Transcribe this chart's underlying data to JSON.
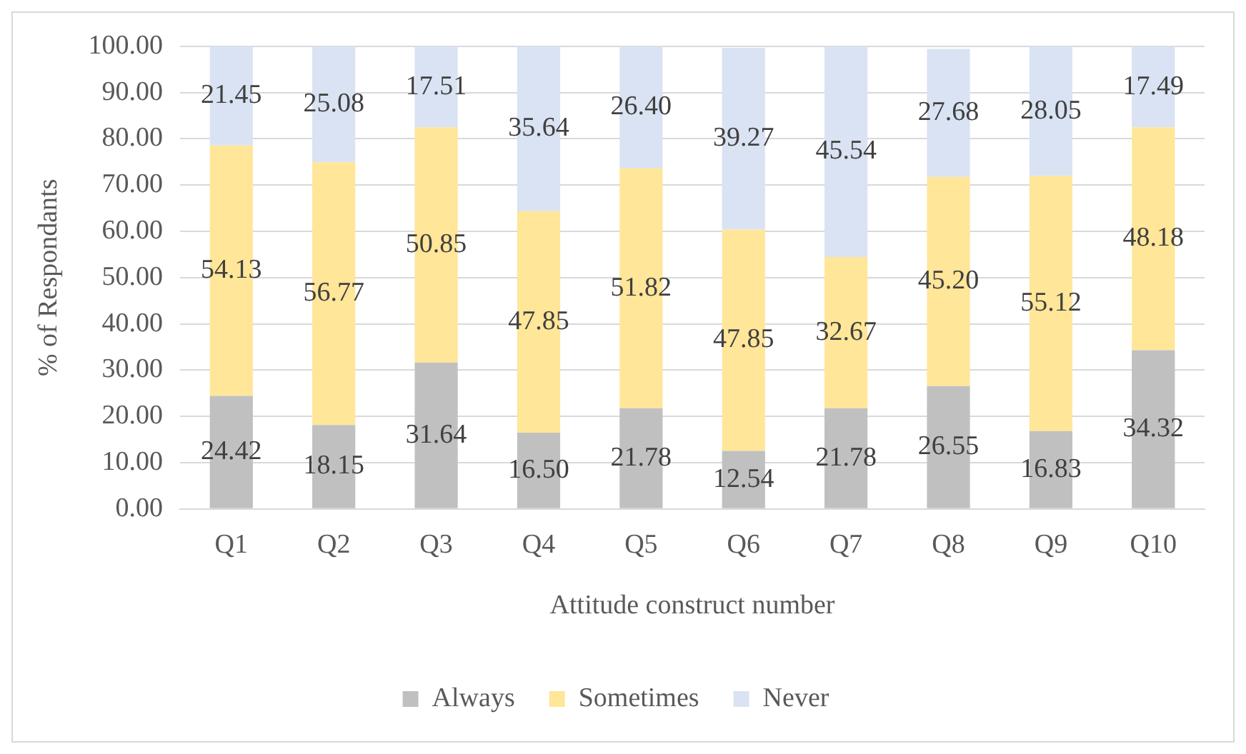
{
  "chart_data": {
    "type": "bar",
    "stacked": true,
    "xlabel": "Attitude construct number",
    "ylabel": "% of Respondants",
    "categories": [
      "Q1",
      "Q2",
      "Q3",
      "Q4",
      "Q5",
      "Q6",
      "Q7",
      "Q8",
      "Q9",
      "Q10"
    ],
    "series": [
      {
        "name": "Always",
        "color": "#c0c0c0",
        "values": [
          24.42,
          18.15,
          31.64,
          16.5,
          21.78,
          12.54,
          21.78,
          26.55,
          16.83,
          34.32
        ],
        "value_labels": [
          "24.42",
          "18.15",
          "31.64",
          "16.50",
          "21.78",
          "12.54",
          "21.78",
          "26.55",
          "16.83",
          "34.32"
        ]
      },
      {
        "name": "Sometimes",
        "color": "#ffe699",
        "values": [
          54.13,
          56.77,
          50.85,
          47.85,
          51.82,
          47.85,
          32.67,
          45.2,
          55.12,
          48.18
        ],
        "value_labels": [
          "54.13",
          "56.77",
          "50.85",
          "47.85",
          "51.82",
          "47.85",
          "32.67",
          "45.20",
          "55.12",
          "48.18"
        ]
      },
      {
        "name": "Never",
        "color": "#dae3f3",
        "values": [
          21.45,
          25.08,
          17.51,
          35.64,
          26.4,
          39.27,
          45.54,
          27.68,
          28.05,
          17.49
        ],
        "value_labels": [
          "21.45",
          "25.08",
          "17.51",
          "35.64",
          "26.40",
          "39.27",
          "45.54",
          "27.68",
          "28.05",
          "17.49"
        ]
      }
    ],
    "ylim": [
      0,
      100
    ],
    "yticks": [
      {
        "value": 0,
        "label": "0.00"
      },
      {
        "value": 10,
        "label": "10.00"
      },
      {
        "value": 20,
        "label": "20.00"
      },
      {
        "value": 30,
        "label": "30.00"
      },
      {
        "value": 40,
        "label": "40.00"
      },
      {
        "value": 50,
        "label": "50.00"
      },
      {
        "value": 60,
        "label": "60.00"
      },
      {
        "value": 70,
        "label": "70.00"
      },
      {
        "value": 80,
        "label": "80.00"
      },
      {
        "value": 90,
        "label": "90.00"
      },
      {
        "value": 100,
        "label": "100.00"
      }
    ],
    "grid": "y",
    "legend": "bottom"
  }
}
